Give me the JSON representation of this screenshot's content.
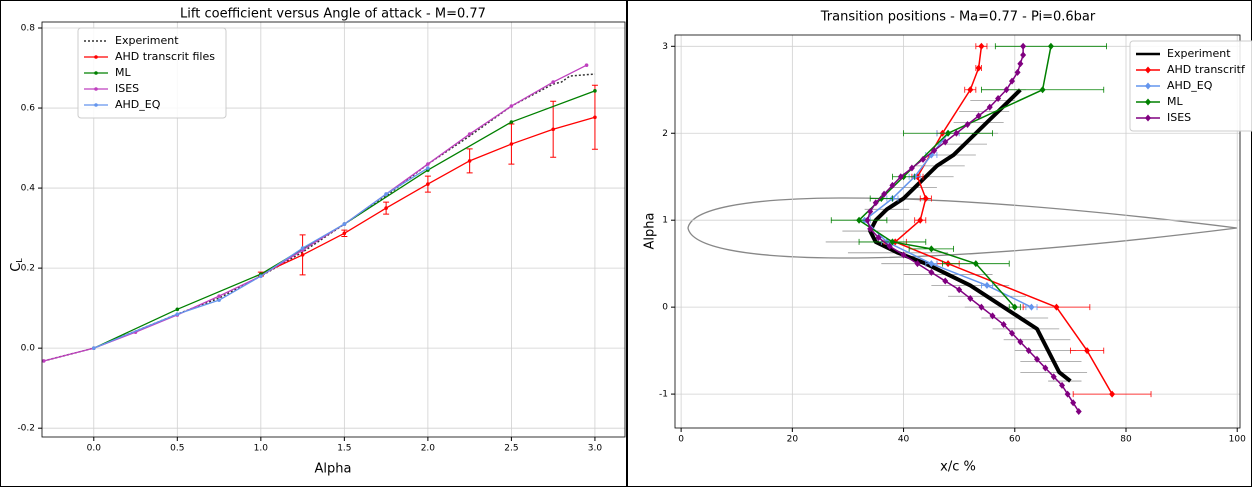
{
  "chart_data": [
    {
      "type": "line",
      "title": "Lift coefficient versus Angle of attack - M=0.77",
      "x_label": "Alpha",
      "y_label": [
        "C",
        "L"
      ],
      "xlim": [
        -0.31,
        3.18
      ],
      "ylim": [
        -0.222,
        0.815
      ],
      "grid": true,
      "legend": "upper left",
      "xticks": [
        {
          "value": 0,
          "label": "0.0"
        },
        {
          "value": 0.5,
          "label": "0.5"
        },
        {
          "value": 1,
          "label": "1.0"
        },
        {
          "value": 1.5,
          "label": "1.5"
        },
        {
          "value": 2,
          "label": "2.0"
        },
        {
          "value": 2.5,
          "label": "2.5"
        },
        {
          "value": 3,
          "label": "3.0"
        }
      ],
      "yticks": [
        {
          "value": -0.2,
          "label": "-0.2"
        },
        {
          "value": 0,
          "label": "0.0"
        },
        {
          "value": 0.2,
          "label": "0.2"
        },
        {
          "value": 0.4,
          "label": "0.4"
        },
        {
          "value": 0.6,
          "label": "0.6"
        },
        {
          "value": 0.8,
          "label": "0.8"
        }
      ],
      "series": [
        {
          "name": "Experiment",
          "color": "#333333",
          "linestyle": "dotted",
          "marker": "none",
          "linewidth": 1.5,
          "x": [
            -0.3,
            0,
            0.5,
            0.75,
            1.0,
            1.25,
            1.5,
            1.75,
            2.0,
            2.25,
            2.5,
            2.75,
            2.8,
            2.85,
            3.0
          ],
          "values": [
            -0.032,
            0,
            0.085,
            0.125,
            0.18,
            0.24,
            0.31,
            0.38,
            0.46,
            0.53,
            0.605,
            0.66,
            0.665,
            0.68,
            0.685
          ]
        },
        {
          "name": "AHD transcrit files",
          "color": "#ff0000",
          "linestyle": "solid",
          "marker": "point",
          "linewidth": 1.3,
          "x": [
            1.0,
            1.25,
            1.5,
            1.75,
            2.0,
            2.25,
            2.5,
            2.75,
            3.0
          ],
          "values": [
            0.185,
            0.233,
            0.287,
            0.35,
            0.41,
            0.468,
            0.51,
            0.547,
            0.577
          ],
          "yerr": [
            0.005,
            0.05,
            0.008,
            0.015,
            0.02,
            0.03,
            0.05,
            0.07,
            0.08
          ]
        },
        {
          "name": "ML",
          "color": "#008000",
          "linestyle": "solid",
          "marker": "point",
          "linewidth": 1.3,
          "x": [
            0,
            0.5,
            1.0,
            1.5,
            2.0,
            2.5,
            3.0
          ],
          "values": [
            0,
            0.097,
            0.185,
            0.31,
            0.445,
            0.565,
            0.643
          ]
        },
        {
          "name": "ISES",
          "color": "#bf40bf",
          "linestyle": "solid",
          "marker": "point",
          "linewidth": 1.3,
          "x": [
            -0.3,
            0,
            0.25,
            0.5,
            0.75,
            1.0,
            1.25,
            1.5,
            1.75,
            2.0,
            2.25,
            2.5,
            2.75,
            2.95
          ],
          "values": [
            -0.032,
            0,
            0.04,
            0.083,
            0.13,
            0.18,
            0.245,
            0.31,
            0.385,
            0.46,
            0.535,
            0.605,
            0.665,
            0.707
          ]
        },
        {
          "name": "AHD_EQ",
          "color": "#6495ed",
          "linestyle": "solid",
          "marker": "point",
          "linewidth": 1.3,
          "x": [
            0,
            0.5,
            0.75,
            1.0,
            1.25,
            1.5,
            1.75,
            2.0
          ],
          "values": [
            0,
            0.085,
            0.12,
            0.18,
            0.25,
            0.31,
            0.385,
            0.45
          ]
        }
      ]
    },
    {
      "type": "line",
      "title": "Transition positions - Ma=0.77 - Pi=0.6bar",
      "x_label": "x/c %",
      "y_label": "Alpha",
      "xlim": [
        -1.1,
        100.5
      ],
      "ylim": [
        -1.39,
        3.13
      ],
      "grid": true,
      "legend": "upper right",
      "xticks": [
        0,
        20,
        40,
        60,
        80,
        100
      ],
      "yticks": [
        -1,
        0,
        1,
        2,
        3
      ],
      "band": {
        "color": "#999999",
        "values": [
          -0.85,
          -0.75,
          -0.625,
          -0.5,
          -0.375,
          -0.25,
          -0.125,
          0,
          0.125,
          0.25,
          0.375,
          0.5,
          0.625,
          0.75,
          0.875,
          1.0,
          1.125,
          1.25,
          1.375,
          1.5,
          1.625,
          1.75,
          1.875,
          2.0,
          2.125,
          2.25,
          2.375,
          2.5
        ],
        "lower": [
          66,
          61,
          61,
          60,
          58,
          56,
          54,
          51,
          48,
          45,
          40,
          36,
          30,
          26,
          29,
          31,
          33,
          35,
          38,
          40,
          42,
          44,
          46,
          47,
          49,
          50,
          52,
          54
        ],
        "upper": [
          72,
          73,
          72,
          71,
          70,
          68,
          66,
          64,
          62,
          59,
          56,
          52,
          48,
          44,
          41,
          40,
          41,
          44,
          46,
          49,
          51,
          53,
          55,
          57,
          58,
          59,
          60,
          62
        ]
      },
      "series": [
        {
          "name": "Experiment",
          "color": "#000000",
          "linestyle": "solid",
          "marker": "none",
          "linewidth": 4,
          "x": [
            70,
            68,
            67,
            66,
            65,
            64,
            61,
            58,
            55,
            52,
            48,
            44,
            39,
            35,
            34,
            35,
            37,
            40,
            42,
            44,
            46,
            49,
            51,
            53,
            55,
            57,
            59,
            61
          ],
          "values": [
            -0.85,
            -0.75,
            -0.625,
            -0.5,
            -0.375,
            -0.25,
            -0.125,
            0,
            0.125,
            0.25,
            0.375,
            0.5,
            0.625,
            0.75,
            0.875,
            1.0,
            1.125,
            1.25,
            1.375,
            1.5,
            1.625,
            1.75,
            1.875,
            2.0,
            2.125,
            2.25,
            2.375,
            2.5
          ]
        },
        {
          "name": "AHD transcritf",
          "color": "#ff0000",
          "linestyle": "solid",
          "marker": "diamond",
          "linewidth": 1.5,
          "x": [
            77.5,
            73,
            67.5,
            48,
            38.5,
            43,
            44,
            42.5,
            47,
            52,
            53.5,
            54
          ],
          "values": [
            -1,
            -0.5,
            0,
            0.5,
            0.75,
            1.0,
            1.25,
            1.5,
            2.0,
            2.5,
            2.75,
            3.0
          ],
          "xerr": [
            7,
            3,
            6,
            2,
            2,
            1,
            1,
            1,
            1,
            1,
            0.5,
            1
          ]
        },
        {
          "name": "AHD_EQ",
          "color": "#6495ed",
          "linestyle": "solid",
          "marker": "diamond",
          "linewidth": 1.5,
          "x": [
            63,
            55,
            45,
            37,
            33,
            38,
            42,
            45,
            48
          ],
          "values": [
            0,
            0.25,
            0.5,
            0.75,
            1.0,
            1.25,
            1.5,
            1.75,
            2.0
          ],
          "xerr": [
            1,
            1,
            1,
            1,
            1,
            1,
            1,
            1,
            2
          ]
        },
        {
          "name": "ML",
          "color": "#008000",
          "linestyle": "solid",
          "marker": "diamond",
          "linewidth": 1.5,
          "x": [
            60,
            53,
            45,
            38,
            32,
            36,
            40,
            48,
            65,
            66.5
          ],
          "values": [
            0,
            0.5,
            0.67,
            0.75,
            1.0,
            1.25,
            1.5,
            2.0,
            2.5,
            3.0
          ],
          "xerr": [
            1,
            6,
            4,
            6,
            5,
            2,
            2,
            8,
            11,
            10
          ]
        },
        {
          "name": "ISES",
          "color": "#800080",
          "linestyle": "solid",
          "marker": "diamond",
          "linewidth": 1.5,
          "x": [
            71.5,
            70.5,
            69.5,
            68.5,
            67,
            65.5,
            64,
            62.5,
            61,
            59.5,
            58,
            56,
            54,
            52,
            50,
            47.5,
            45,
            42.5,
            40,
            37.5,
            35.5,
            34,
            33.5,
            34,
            35,
            36.5,
            38,
            39.5,
            41.5,
            43.5,
            45.5,
            47.5,
            49.5,
            51.5,
            53.5,
            55.5,
            57,
            58.5,
            59.5,
            60.5,
            61,
            61.5,
            61.5
          ],
          "values": [
            -1.2,
            -1.1,
            -1.0,
            -0.9,
            -0.8,
            -0.7,
            -0.6,
            -0.5,
            -0.4,
            -0.3,
            -0.2,
            -0.1,
            0,
            0.1,
            0.2,
            0.3,
            0.4,
            0.5,
            0.6,
            0.7,
            0.8,
            0.9,
            1.0,
            1.1,
            1.2,
            1.3,
            1.4,
            1.5,
            1.6,
            1.7,
            1.8,
            1.9,
            2.0,
            2.1,
            2.2,
            2.3,
            2.4,
            2.5,
            2.6,
            2.7,
            2.8,
            2.9,
            3.0
          ]
        }
      ]
    }
  ]
}
